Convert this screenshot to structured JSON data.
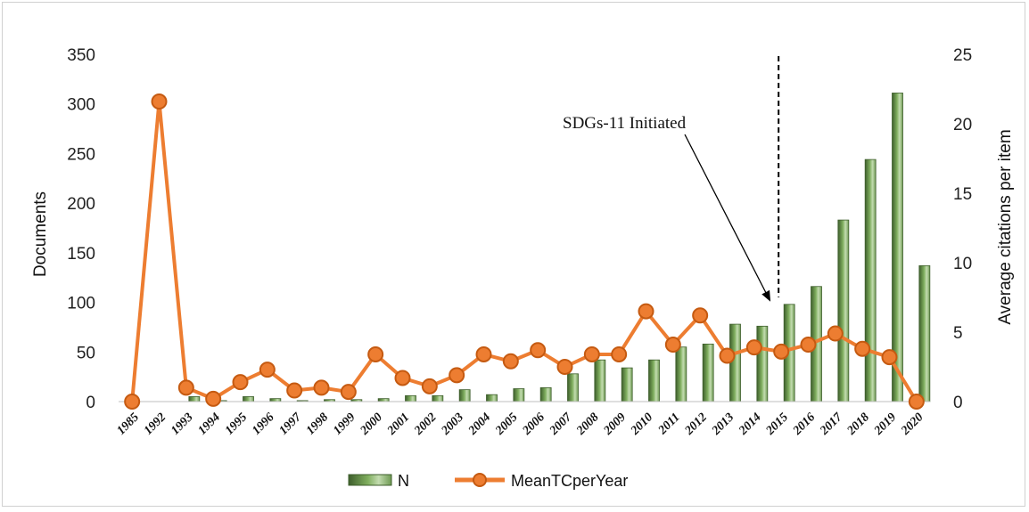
{
  "chart_data": {
    "type": "bar",
    "categories": [
      "1985",
      "1992",
      "1993",
      "1994",
      "1995",
      "1996",
      "1997",
      "1998",
      "1999",
      "2000",
      "2001",
      "2002",
      "2003",
      "2004",
      "2005",
      "2006",
      "2007",
      "2008",
      "2009",
      "2010",
      "2011",
      "2012",
      "2013",
      "2014",
      "2015",
      "2016",
      "2017",
      "2018",
      "2019",
      "2020"
    ],
    "series": [
      {
        "name": "N",
        "type": "bar",
        "axis": "left",
        "color": "#6e9a52",
        "values": [
          0,
          0,
          5,
          1,
          5,
          3,
          1,
          2,
          2,
          3,
          6,
          6,
          12,
          7,
          13,
          14,
          28,
          42,
          34,
          42,
          55,
          58,
          78,
          76,
          98,
          116,
          183,
          244,
          311,
          137
        ]
      },
      {
        "name": "MeanTCperYear",
        "type": "line",
        "axis": "right",
        "color": "#ed7d31",
        "values": [
          0,
          21.6,
          1.0,
          0.2,
          1.4,
          2.3,
          0.8,
          1.0,
          0.7,
          3.4,
          1.7,
          1.1,
          1.9,
          3.4,
          2.9,
          3.7,
          2.5,
          3.4,
          3.4,
          6.5,
          4.1,
          6.2,
          3.3,
          3.9,
          3.6,
          4.1,
          4.9,
          3.8,
          3.2,
          0
        ]
      }
    ],
    "ylabel": "Documents",
    "y2label": "Average citations per item",
    "ylim": [
      0,
      350
    ],
    "y2lim": [
      0,
      25
    ],
    "yticks": [
      "0",
      "50",
      "100",
      "150",
      "200",
      "250",
      "300",
      "350"
    ],
    "y2ticks": [
      "0",
      "5",
      "10",
      "15",
      "20",
      "25"
    ],
    "grid": false,
    "legend_position": "bottom",
    "annotation": {
      "text": "SDGs-11 Initiated",
      "category": "2015"
    }
  }
}
